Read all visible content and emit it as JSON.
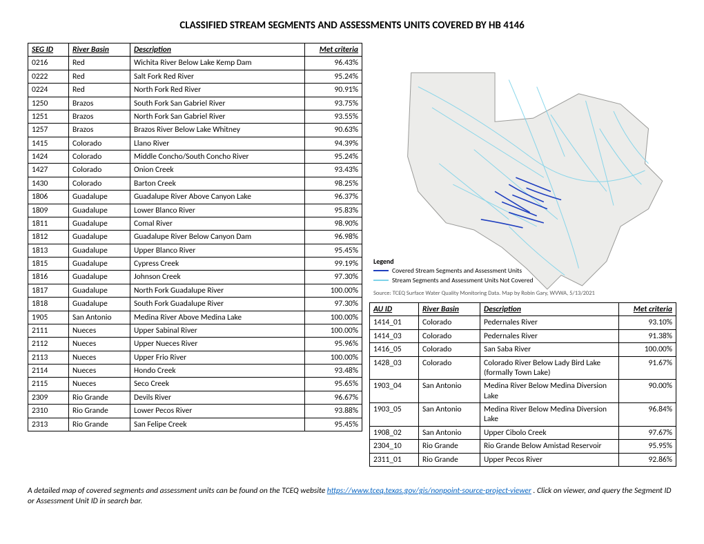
{
  "title": "CLASSIFIED STREAM SEGMENTS AND ASSESSMENTS UNITS COVERED BY HB 4146",
  "main_table": {
    "headers": {
      "seg": "SEG ID",
      "basin": "River Basin",
      "desc": "Description",
      "met": "Met criteria"
    },
    "rows": [
      {
        "seg": "0216",
        "basin": "Red",
        "desc": "Wichita River Below Lake Kemp Dam",
        "met": "96.43%"
      },
      {
        "seg": "0222",
        "basin": "Red",
        "desc": "Salt Fork Red River",
        "met": "95.24%"
      },
      {
        "seg": "0224",
        "basin": "Red",
        "desc": "North Fork Red River",
        "met": "90.91%"
      },
      {
        "seg": "1250",
        "basin": "Brazos",
        "desc": "South Fork San Gabriel River",
        "met": "93.75%"
      },
      {
        "seg": "1251",
        "basin": "Brazos",
        "desc": "North Fork San Gabriel River",
        "met": "93.55%"
      },
      {
        "seg": "1257",
        "basin": "Brazos",
        "desc": "Brazos River Below Lake Whitney",
        "met": "90.63%"
      },
      {
        "seg": "1415",
        "basin": "Colorado",
        "desc": "Llano River",
        "met": "94.39%"
      },
      {
        "seg": "1424",
        "basin": "Colorado",
        "desc": "Middle Concho/South Concho River",
        "met": "95.24%"
      },
      {
        "seg": "1427",
        "basin": "Colorado",
        "desc": "Onion Creek",
        "met": "93.43%"
      },
      {
        "seg": "1430",
        "basin": "Colorado",
        "desc": "Barton Creek",
        "met": "98.25%"
      },
      {
        "seg": "1806",
        "basin": "Guadalupe",
        "desc": "Guadalupe River Above Canyon Lake",
        "met": "96.37%"
      },
      {
        "seg": "1809",
        "basin": "Guadalupe",
        "desc": "Lower Blanco River",
        "met": "95.83%"
      },
      {
        "seg": "1811",
        "basin": "Guadalupe",
        "desc": "Comal River",
        "met": "98.90%"
      },
      {
        "seg": "1812",
        "basin": "Guadalupe",
        "desc": "Guadalupe River Below Canyon Dam",
        "met": "96.98%"
      },
      {
        "seg": "1813",
        "basin": "Guadalupe",
        "desc": "Upper Blanco River",
        "met": "95.45%"
      },
      {
        "seg": "1815",
        "basin": "Guadalupe",
        "desc": "Cypress Creek",
        "met": "99.19%"
      },
      {
        "seg": "1816",
        "basin": "Guadalupe",
        "desc": "Johnson Creek",
        "met": "97.30%"
      },
      {
        "seg": "1817",
        "basin": "Guadalupe",
        "desc": "North Fork Guadalupe River",
        "met": "100.00%"
      },
      {
        "seg": "1818",
        "basin": "Guadalupe",
        "desc": "South Fork Guadalupe River",
        "met": "97.30%"
      },
      {
        "seg": "1905",
        "basin": "San Antonio",
        "desc": "Medina River Above Medina Lake",
        "met": "100.00%"
      },
      {
        "seg": "2111",
        "basin": "Nueces",
        "desc": "Upper Sabinal River",
        "met": "100.00%"
      },
      {
        "seg": "2112",
        "basin": "Nueces",
        "desc": "Upper Nueces River",
        "met": "95.96%"
      },
      {
        "seg": "2113",
        "basin": "Nueces",
        "desc": "Upper Frio River",
        "met": "100.00%"
      },
      {
        "seg": "2114",
        "basin": "Nueces",
        "desc": "Hondo Creek",
        "met": "93.48%"
      },
      {
        "seg": "2115",
        "basin": "Nueces",
        "desc": "Seco Creek",
        "met": "95.65%"
      },
      {
        "seg": "2309",
        "basin": "Rio Grande",
        "desc": "Devils River",
        "met": "96.67%"
      },
      {
        "seg": "2310",
        "basin": "Rio Grande",
        "desc": "Lower Pecos River",
        "met": "93.88%"
      },
      {
        "seg": "2313",
        "basin": "Rio Grande",
        "desc": "San Felipe Creek",
        "met": "95.45%"
      }
    ]
  },
  "au_table": {
    "headers": {
      "au": "AU ID",
      "basin": "River Basin",
      "desc": "Description",
      "met": "Met criteria"
    },
    "rows": [
      {
        "au": "1414_01",
        "basin": "Colorado",
        "desc": "Pedernales River",
        "met": "93.10%"
      },
      {
        "au": "1414_03",
        "basin": "Colorado",
        "desc": "Pedernales River",
        "met": "91.38%"
      },
      {
        "au": "1416_05",
        "basin": "Colorado",
        "desc": "San Saba River",
        "met": "100.00%"
      },
      {
        "au": "1428_03",
        "basin": "Colorado",
        "desc": "Colorado River Below Lady Bird Lake (formally Town Lake)",
        "met": "91.67%"
      },
      {
        "au": "1903_04",
        "basin": "San Antonio",
        "desc": "Medina River Below Medina Diversion Lake",
        "met": "90.00%"
      },
      {
        "au": "1903_05",
        "basin": "San Antonio",
        "desc": "Medina River Below Medina Diversion Lake",
        "met": "96.84%"
      },
      {
        "au": "1908_02",
        "basin": "San Antonio",
        "desc": "Upper Cibolo Creek",
        "met": "97.67%"
      },
      {
        "au": "2304_10",
        "basin": "Rio Grande",
        "desc": "Rio Grande Below Amistad Reservoir",
        "met": "95.95%"
      },
      {
        "au": "2311_01",
        "basin": "Rio Grande",
        "desc": "Upper Pecos River",
        "met": "92.86%"
      }
    ]
  },
  "map": {
    "legend_title": "Legend",
    "covered_label": "Covered Stream Segments and Assessment Units",
    "notcovered_label": "Stream Segments and Assessment Units Not Covered",
    "covered_color": "#1f3fbf",
    "notcovered_color": "#7ed3e9",
    "terrain_color": "#e6e6e3",
    "outline_color": "#9a9a98",
    "source": "Source:  TCEQ Surface Water Quality Monitoring Data. Map by Robin Gary, WVWA, 5/13/2021"
  },
  "footnote": {
    "lead": "A detailed map of covered segments and assessment units can be found on the TCEQ website ",
    "link_text": "https://www.tceq.texas.gov/gis/nonpoint-source-project-viewer",
    "trail": " . Click on viewer, and query the Segment ID or Assessment Unit ID in search bar."
  }
}
